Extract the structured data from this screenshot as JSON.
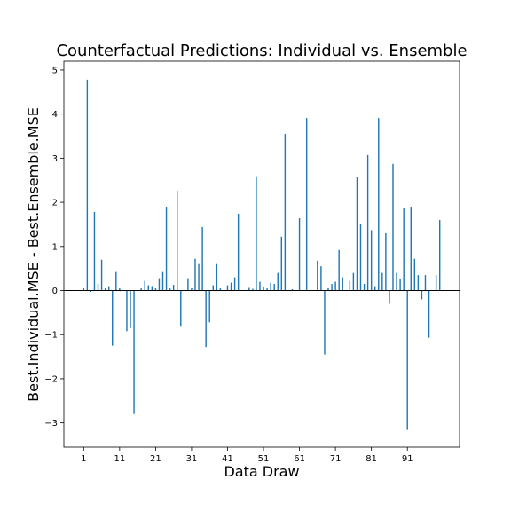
{
  "chart_data": {
    "type": "bar",
    "title": "Counterfactual Predictions: Individual vs. Ensemble",
    "xlabel": "Data Draw",
    "ylabel": "Best.Individual.MSE - Best.Ensemble.MSE",
    "xlim": [
      -4.5,
      105.5
    ],
    "ylim": [
      -3.55,
      5.2
    ],
    "x_ticks": [
      1,
      11,
      21,
      31,
      41,
      51,
      61,
      71,
      81,
      91
    ],
    "y_ticks": [
      -3,
      -2,
      -1,
      0,
      1,
      2,
      3,
      4,
      5
    ],
    "y_tick_labels": [
      "−3",
      "−2",
      "−1",
      "0",
      "1",
      "2",
      "3",
      "4",
      "5"
    ],
    "zero_line": true,
    "grid": false,
    "color": "#1f77b4",
    "x": [
      1,
      2,
      3,
      4,
      5,
      6,
      7,
      8,
      9,
      10,
      11,
      12,
      13,
      14,
      15,
      16,
      17,
      18,
      19,
      20,
      21,
      22,
      23,
      24,
      25,
      26,
      27,
      28,
      29,
      30,
      31,
      32,
      33,
      34,
      35,
      36,
      37,
      38,
      39,
      40,
      41,
      42,
      43,
      44,
      45,
      46,
      47,
      48,
      49,
      50,
      51,
      52,
      53,
      54,
      55,
      56,
      57,
      58,
      59,
      60,
      61,
      62,
      63,
      64,
      65,
      66,
      67,
      68,
      69,
      70,
      71,
      72,
      73,
      74,
      75,
      76,
      77,
      78,
      79,
      80,
      81,
      82,
      83,
      84,
      85,
      86,
      87,
      88,
      89,
      90,
      91,
      92,
      93,
      94,
      95,
      96,
      97,
      98,
      99,
      100
    ],
    "values": [
      0.05,
      4.78,
      -0.03,
      1.78,
      0.15,
      0.7,
      0.05,
      0.1,
      -1.25,
      0.42,
      0.05,
      0,
      -0.92,
      -0.85,
      -2.8,
      0,
      0.05,
      0.22,
      0.12,
      0.1,
      0.05,
      0.28,
      0.42,
      1.9,
      0.05,
      0.13,
      2.26,
      -0.82,
      0,
      0.28,
      0.05,
      0.72,
      0.6,
      1.44,
      -1.28,
      -0.72,
      0.12,
      0.6,
      0.05,
      0,
      0.12,
      0.18,
      0.3,
      1.74,
      0,
      0,
      0.06,
      0.04,
      2.59,
      0.2,
      0.08,
      0.05,
      0.18,
      0.15,
      0.4,
      1.22,
      3.55,
      0,
      0.03,
      0.01,
      1.64,
      0,
      3.91,
      0,
      0,
      0.68,
      0.55,
      -1.45,
      0.05,
      0.15,
      0.2,
      0.92,
      0.3,
      0,
      0.22,
      0.4,
      2.57,
      1.52,
      0.15,
      3.07,
      1.37,
      0.1,
      3.91,
      0.4,
      1.3,
      -0.3,
      2.87,
      0.4,
      0.26,
      1.86,
      -3.16,
      1.9,
      0.72,
      0.35,
      -0.2,
      0.35,
      -1.07,
      0,
      0.35,
      1.6
    ]
  }
}
